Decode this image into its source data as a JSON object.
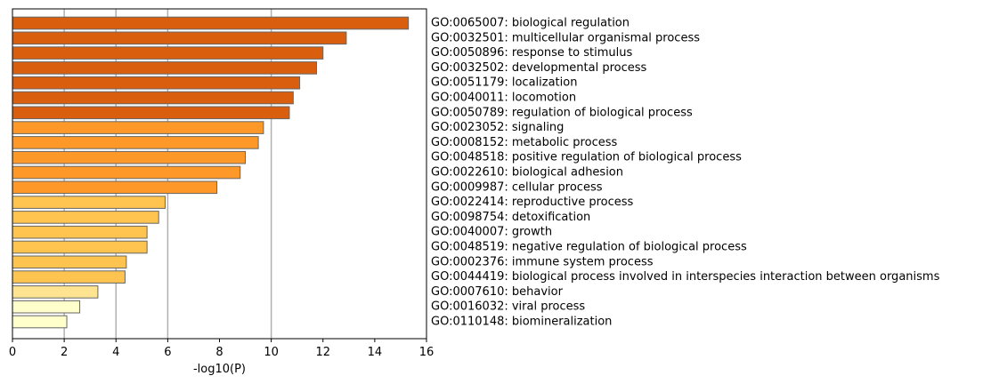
{
  "chart_data": {
    "type": "bar",
    "orientation": "horizontal",
    "xlabel": "-log10(P)",
    "xlim": [
      0,
      16
    ],
    "xticks": [
      0,
      2,
      4,
      6,
      8,
      10,
      12,
      14,
      16
    ],
    "xtick_labels": [
      "0",
      "2",
      "4",
      "6",
      "8",
      "10",
      "12",
      "14",
      "16"
    ],
    "vertical_gridlines_at": [
      2,
      4,
      6,
      10
    ],
    "categories": [
      "GO:0065007: biological regulation",
      "GO:0032501: multicellular organismal process",
      "GO:0050896: response to stimulus",
      "GO:0032502: developmental process",
      "GO:0051179: localization",
      "GO:0040011: locomotion",
      "GO:0050789: regulation of biological process",
      "GO:0023052: signaling",
      "GO:0008152: metabolic process",
      "GO:0048518: positive regulation of biological process",
      "GO:0022610: biological adhesion",
      "GO:0009987: cellular process",
      "GO:0022414: reproductive process",
      "GO:0098754: detoxification",
      "GO:0040007: growth",
      "GO:0048519: negative regulation of biological process",
      "GO:0002376: immune system process",
      "GO:0044419: biological process involved in interspecies interaction between organisms",
      "GO:0007610: behavior",
      "GO:0016032: viral process",
      "GO:0110148: biomineralization"
    ],
    "values": [
      15.3,
      12.9,
      12.0,
      11.75,
      11.1,
      10.85,
      10.7,
      9.7,
      9.5,
      9.0,
      8.8,
      7.9,
      5.9,
      5.65,
      5.2,
      5.2,
      4.4,
      4.35,
      3.3,
      2.6,
      2.1
    ],
    "bar_colors": [
      "#d95f0e",
      "#d95f0e",
      "#d95f0e",
      "#d95f0e",
      "#d95f0e",
      "#d95f0e",
      "#d95f0e",
      "#fe9929",
      "#fe9929",
      "#fe9929",
      "#fe9929",
      "#fe9929",
      "#fec44f",
      "#fec44f",
      "#fec44f",
      "#fec44f",
      "#fec44f",
      "#fec44f",
      "#fee391",
      "#ffffcc",
      "#ffffcc"
    ],
    "bar_edge_color": "#666666",
    "grid_color": "#b0b0b0",
    "label_position": "right"
  }
}
